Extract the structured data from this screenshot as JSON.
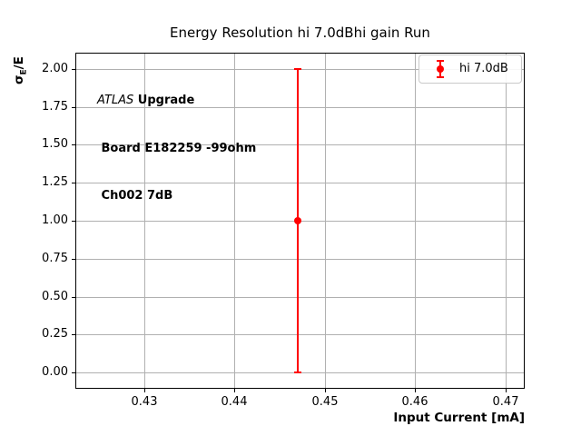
{
  "figure": {
    "background": "#ffffff",
    "title": "Energy Resolution hi 7.0dBhi gain Run"
  },
  "axes": {
    "xlabel": "Input Current [mA]",
    "ylabel": "σE/E",
    "ylabel_parts": {
      "sigma": "σ",
      "sub": "E",
      "rest": "/E"
    }
  },
  "annotation": {
    "line1_italic": "ATLAS",
    "line1_bold": " Upgrade",
    "line2": " Board E182259 -99ohm",
    "line3": " Ch002 7dB"
  },
  "legend": {
    "position": "upper right",
    "entries": [
      {
        "label": "hi 7.0dB",
        "color": "#ff0000",
        "marker": "errorbar-circle"
      }
    ]
  },
  "chart_data": {
    "type": "scatter",
    "title": "Energy Resolution hi 7.0dBhi gain Run",
    "xlabel": "Input Current [mA]",
    "ylabel": "σE/E",
    "xlim": [
      0.4225,
      0.472
    ],
    "ylim": [
      -0.1,
      2.1
    ],
    "xticks": [
      0.43,
      0.44,
      0.45,
      0.46,
      0.47
    ],
    "xtick_labels": [
      "0.43",
      "0.44",
      "0.45",
      "0.46",
      "0.47"
    ],
    "yticks": [
      0.0,
      0.25,
      0.5,
      0.75,
      1.0,
      1.25,
      1.5,
      1.75,
      2.0
    ],
    "ytick_labels": [
      "0.00",
      "0.25",
      "0.50",
      "0.75",
      "1.00",
      "1.25",
      "1.50",
      "1.75",
      "2.00"
    ],
    "grid": true,
    "grid_color": "#b0b0b0",
    "frame_color": "#000000",
    "legend_position": "upper right",
    "series": [
      {
        "name": "hi 7.0dB",
        "color": "#ff0000",
        "marker": "circle",
        "points": [
          {
            "x": 0.447,
            "y": 1.0,
            "yerr": 1.0
          }
        ]
      }
    ]
  }
}
